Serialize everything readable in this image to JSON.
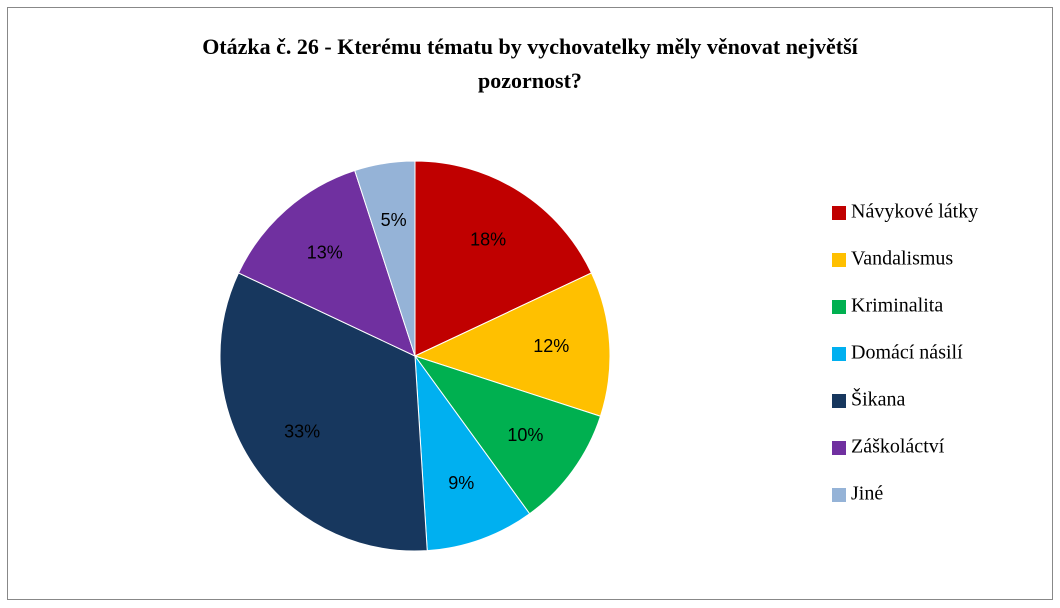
{
  "chart_data": {
    "type": "pie",
    "title": "Otázka č. 26 - Kterému tématu by vychovatelky měly věnovat největší pozornost?",
    "categories": [
      "Návykové látky",
      "Vandalismus",
      "Kriminalita",
      "Domácí násilí",
      "Šikana",
      "Záškoláctví",
      "Jiné"
    ],
    "values": [
      18,
      12,
      10,
      9,
      33,
      13,
      5
    ],
    "value_labels": [
      "18%",
      "12%",
      "10%",
      "9%",
      "33%",
      "13%",
      "5%"
    ],
    "colors": [
      "#c00000",
      "#ffc000",
      "#00b050",
      "#00b0f0",
      "#17375e",
      "#7030a0",
      "#95b3d7"
    ],
    "legend": "right"
  }
}
